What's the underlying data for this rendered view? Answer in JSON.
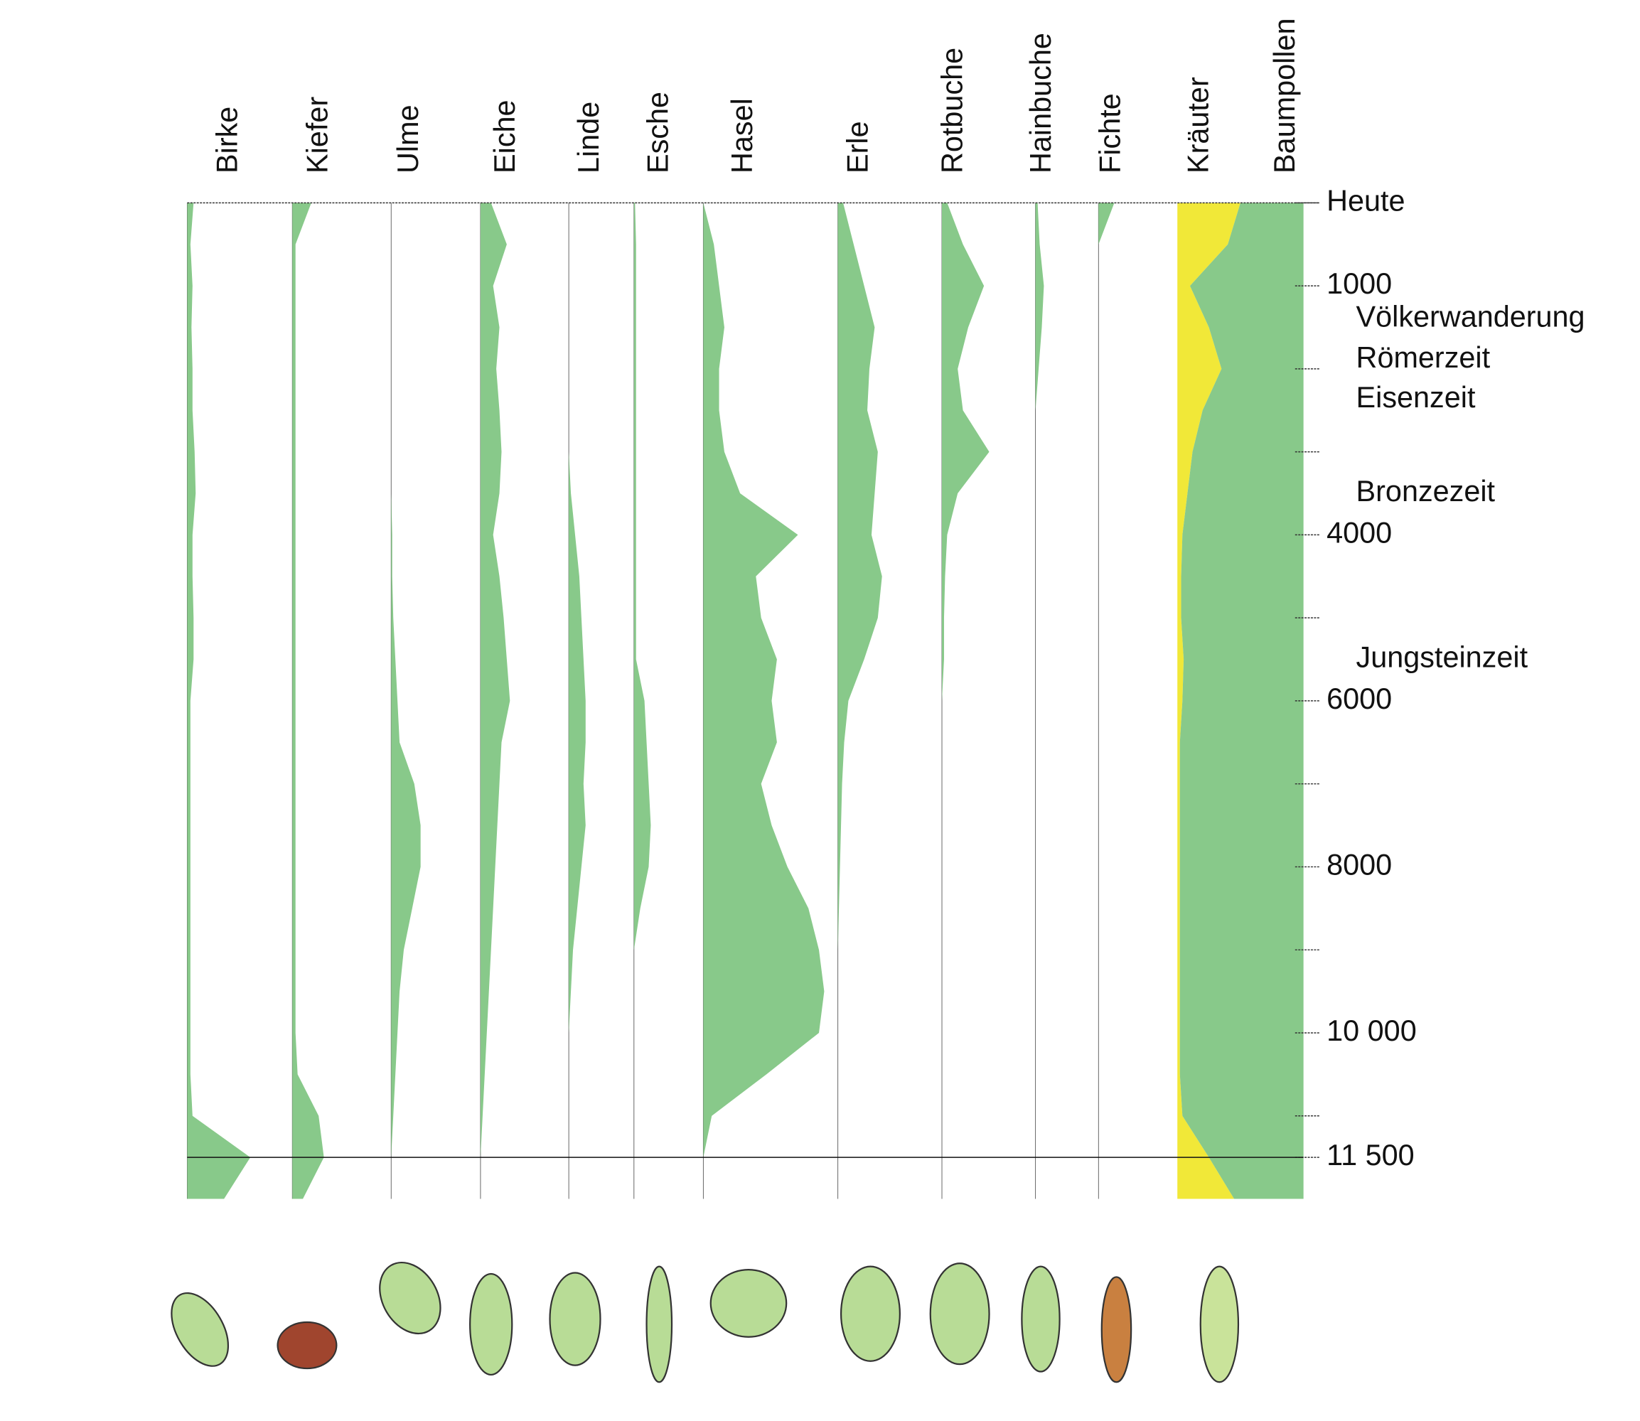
{
  "chart_data": {
    "type": "pollen",
    "x": [
      0,
      500,
      1000,
      1500,
      2000,
      2500,
      3000,
      3500,
      4000,
      4500,
      5000,
      5500,
      6000,
      6500,
      7000,
      7500,
      8000,
      8500,
      9000,
      9500,
      10000,
      10500,
      11000,
      11500,
      12000
    ],
    "ylim": [
      0,
      12220
    ],
    "yticks": [
      {
        "value": 0,
        "label": "Heute"
      },
      1000,
      4000,
      6000,
      8000,
      {
        "value": 10000,
        "label": "10 000"
      },
      {
        "value": 11500,
        "label": "11 500"
      }
    ],
    "minor_yticks": [
      2000,
      3000,
      5000,
      7000,
      9000,
      11000
    ],
    "periods": [
      {
        "label": "Völkerwanderung",
        "age": 1400
      },
      {
        "label": "Römerzeit",
        "age": 1890
      },
      {
        "label": "Eisenzeit",
        "age": 2370
      },
      {
        "label": "Bronzezeit",
        "age": 3500
      },
      {
        "label": "Jungsteinzeit",
        "age": 5500
      }
    ],
    "series": [
      {
        "name": "Birke",
        "color": "#88c98a",
        "values": [
          6,
          3,
          5,
          4,
          5,
          5,
          7,
          8,
          5,
          5,
          6,
          6,
          3,
          3,
          3,
          3,
          3,
          3,
          3,
          3,
          3,
          3,
          5,
          60,
          35
        ]
      },
      {
        "name": "Kiefer",
        "color": "#88c98a",
        "values": [
          18,
          3,
          3,
          3,
          3,
          3,
          3,
          3,
          3,
          3,
          3,
          3,
          3,
          3,
          3,
          3,
          3,
          3,
          3,
          3,
          3,
          5,
          25,
          30,
          10
        ]
      },
      {
        "name": "Ulme",
        "color": "#88c98a",
        "values": [
          0,
          0,
          0,
          0,
          0,
          0,
          0,
          0,
          1,
          1,
          2,
          4,
          6,
          8,
          22,
          28,
          28,
          20,
          12,
          8,
          6,
          4,
          2,
          0,
          0
        ]
      },
      {
        "name": "Eiche",
        "color": "#88c98a",
        "values": [
          10,
          25,
          12,
          18,
          15,
          18,
          20,
          18,
          12,
          18,
          22,
          25,
          28,
          20,
          18,
          16,
          14,
          12,
          10,
          8,
          6,
          4,
          2,
          0,
          0
        ]
      },
      {
        "name": "Linde",
        "color": "#88c98a",
        "values": [
          0,
          0,
          0,
          0,
          0,
          0,
          0,
          2,
          6,
          10,
          12,
          14,
          16,
          16,
          14,
          16,
          12,
          8,
          4,
          2,
          0,
          0,
          0,
          0,
          0
        ]
      },
      {
        "name": "Esche",
        "color": "#88c98a",
        "values": [
          1,
          2,
          2,
          2,
          2,
          2,
          2,
          2,
          2,
          2,
          2,
          2,
          10,
          12,
          14,
          16,
          14,
          6,
          0,
          0,
          0,
          0,
          0,
          0,
          0
        ]
      },
      {
        "name": "Hasel",
        "color": "#88c98a",
        "values": [
          0,
          10,
          15,
          20,
          15,
          15,
          20,
          35,
          90,
          50,
          55,
          70,
          65,
          70,
          55,
          65,
          80,
          100,
          110,
          115,
          110,
          60,
          8,
          0,
          0
        ]
      },
      {
        "name": "Erle",
        "color": "#88c98a",
        "values": [
          5,
          15,
          25,
          35,
          30,
          28,
          38,
          35,
          32,
          42,
          38,
          25,
          10,
          6,
          4,
          3,
          2,
          1,
          0,
          0,
          0,
          0,
          0,
          0,
          0
        ]
      },
      {
        "name": "Rotbuche",
        "color": "#88c98a",
        "values": [
          5,
          20,
          40,
          25,
          15,
          20,
          45,
          15,
          5,
          3,
          2,
          2,
          0,
          0,
          0,
          0,
          0,
          0,
          0,
          0,
          0,
          0,
          0,
          0,
          0
        ]
      },
      {
        "name": "Hainbuche",
        "color": "#88c98a",
        "values": [
          2,
          4,
          8,
          6,
          3,
          0,
          0,
          0,
          0,
          0,
          0,
          0,
          0,
          0,
          0,
          0,
          0,
          0,
          0,
          0,
          0,
          0,
          0,
          0,
          0
        ]
      },
      {
        "name": "Fichte",
        "color": "#88c98a",
        "values": [
          15,
          0,
          0,
          0,
          0,
          0,
          0,
          0,
          0,
          0,
          0,
          0,
          0,
          0,
          0,
          0,
          0,
          0,
          0,
          0,
          0,
          0,
          0,
          0,
          0
        ]
      },
      {
        "name": "Kräuter",
        "color": "#f1e838",
        "values": [
          50,
          40,
          10,
          25,
          35,
          20,
          12,
          8,
          4,
          3,
          3,
          5,
          4,
          2,
          2,
          2,
          2,
          2,
          2,
          2,
          2,
          2,
          4,
          25,
          45
        ]
      },
      {
        "name": "Baumpollen",
        "color": "#88c98a",
        "values": [
          50,
          60,
          90,
          75,
          65,
          80,
          88,
          92,
          96,
          97,
          97,
          95,
          96,
          98,
          98,
          98,
          98,
          98,
          98,
          98,
          98,
          98,
          96,
          75,
          55
        ]
      }
    ]
  }
}
